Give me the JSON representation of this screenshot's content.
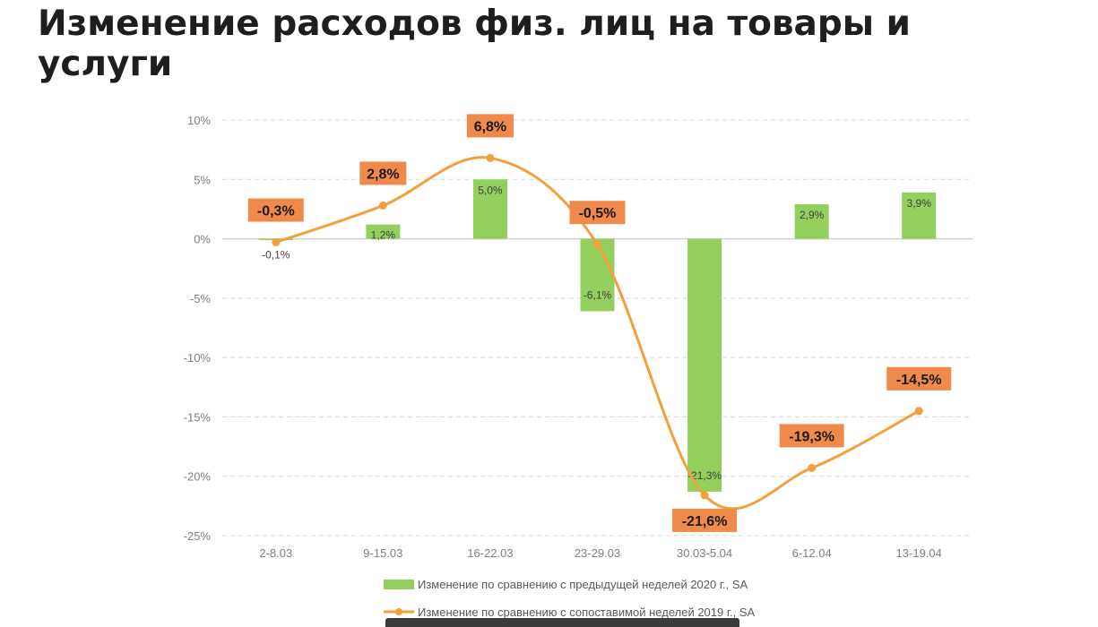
{
  "title": "Изменение расходов физ. лиц на товары и услуги",
  "colors": {
    "bar": "#92cf5c",
    "line": "#f2a03d",
    "label_box": "#ef8a4a",
    "grid": "#d9d9d9",
    "axis_text": "#7f7f7f"
  },
  "chart_data": {
    "type": "bar",
    "categories": [
      "2-8.03",
      "9-15.03",
      "16-22.03",
      "23-29.03",
      "30.03-5.04",
      "6-12.04",
      "13-19.04"
    ],
    "y_ticks": [
      "10%",
      "5%",
      "0%",
      "-5%",
      "-10%",
      "-15%",
      "-20%",
      "-25%"
    ],
    "ylim": [
      -25,
      10
    ],
    "grid": true,
    "legend_position": "bottom",
    "series": [
      {
        "name": "Изменение по сравнению с предыдущей неделей 2020 г., SA",
        "type": "bar",
        "values": [
          -0.1,
          1.2,
          5.0,
          -6.1,
          -21.3,
          2.9,
          3.9
        ],
        "labels": [
          "-0,1%",
          "1,2%",
          "5,0%",
          "-6,1%",
          "-21,3%",
          "2,9%",
          "3,9%"
        ]
      },
      {
        "name": "Изменение по сравнению с сопоставимой неделей 2019 г., SA",
        "type": "line",
        "values": [
          -0.3,
          2.8,
          6.8,
          -0.5,
          -21.6,
          -19.3,
          -14.5
        ],
        "labels": [
          "-0,3%",
          "2,8%",
          "6,8%",
          "-0,5%",
          "-21,6%",
          "-19,3%",
          "-14,5%"
        ]
      }
    ]
  }
}
